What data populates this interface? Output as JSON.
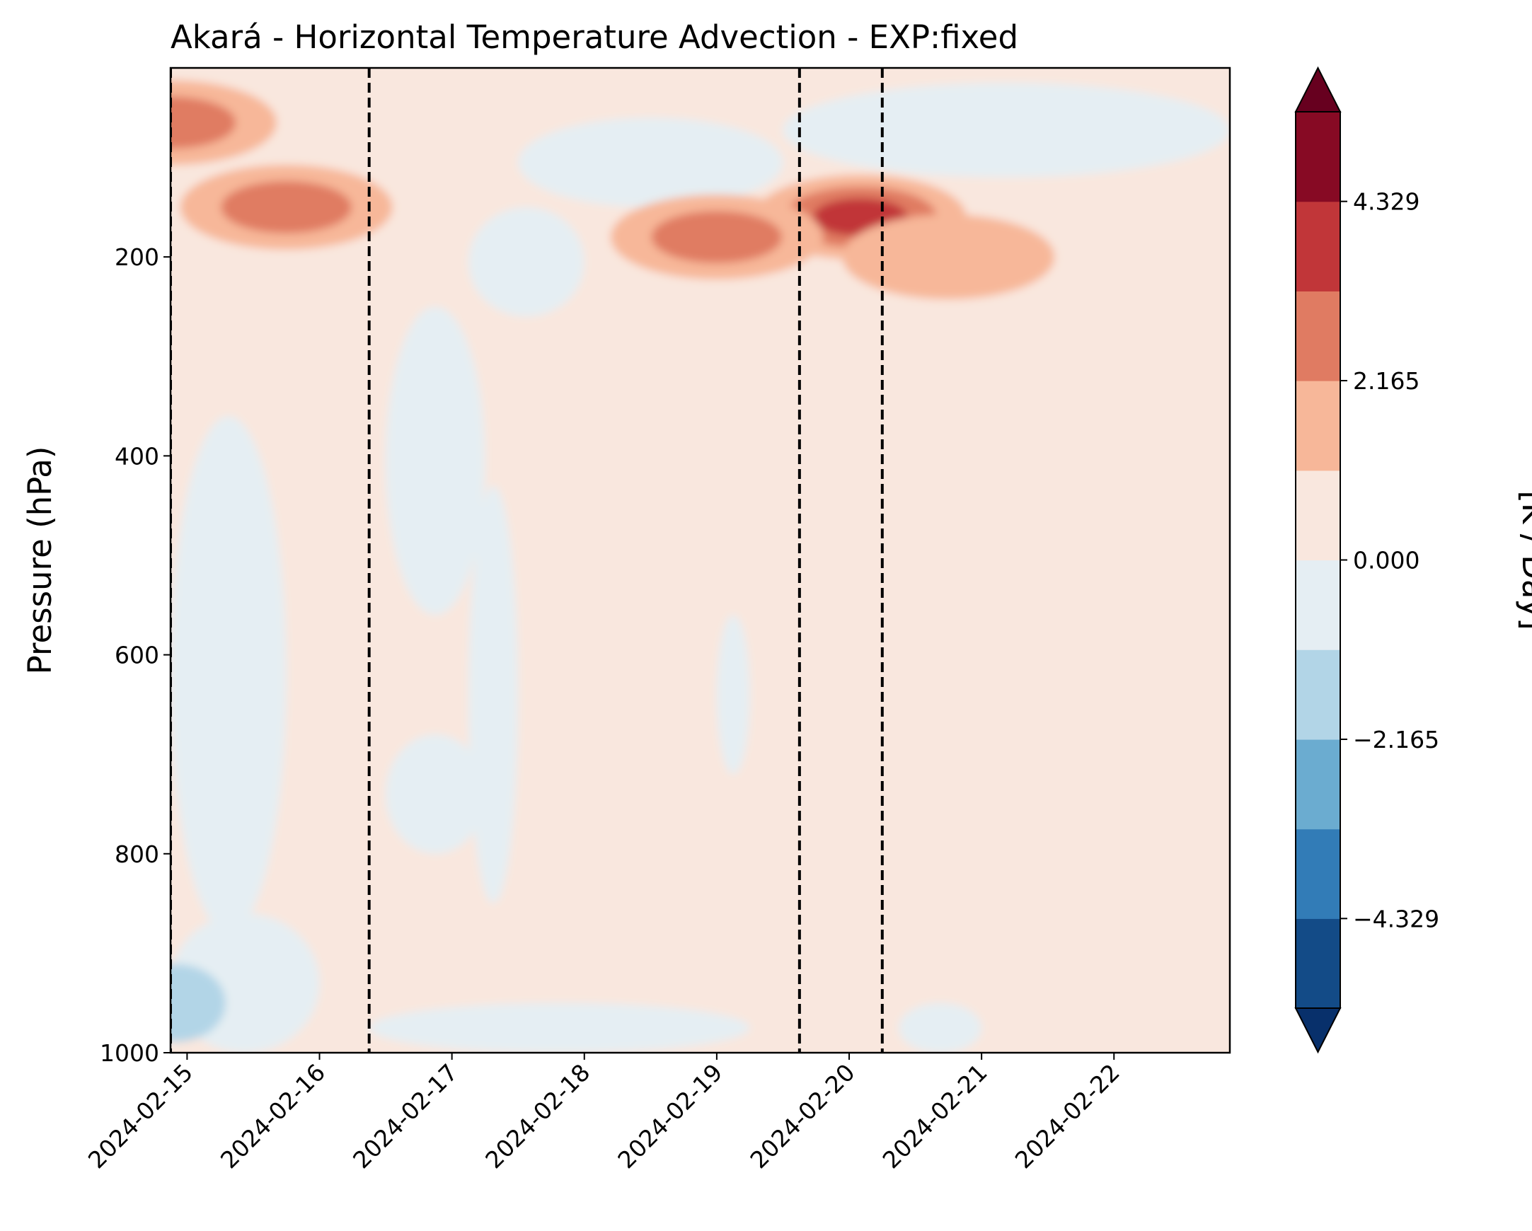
{
  "chart_data": {
    "type": "heatmap",
    "title": "Akará - Horizontal Temperature Advection - EXP:fixed",
    "xlabel": "",
    "ylabel": "Pressure (hPa)",
    "y_axis": {
      "direction": "inverted",
      "ticks": [
        200,
        400,
        600,
        800,
        1000
      ],
      "ylim": [
        1000,
        10
      ]
    },
    "x_axis": {
      "ticks": [
        "2024-02-15",
        "2024-02-16",
        "2024-02-17",
        "2024-02-18",
        "2024-02-19",
        "2024-02-20",
        "2024-02-21",
        "2024-02-22"
      ],
      "xlim": [
        "2024-02-14T21:00",
        "2024-02-22T21:00"
      ]
    },
    "vertical_lines": [
      "2024-02-14T21:00",
      "2024-02-16T09:00",
      "2024-02-19T15:00",
      "2024-02-20T06:00"
    ],
    "colorbar": {
      "label": "[K / Day]",
      "extend": "both",
      "levels": [
        -5.411,
        -4.329,
        -3.247,
        -2.165,
        -1.082,
        0.0,
        1.082,
        2.165,
        3.247,
        4.329,
        5.411
      ],
      "tick_labels": [
        "4.329",
        "2.165",
        "0.000",
        "−2.165",
        "−4.329"
      ],
      "tick_values": [
        4.329,
        2.165,
        0.0,
        -2.165,
        -4.329
      ],
      "colors": [
        "#134b87",
        "#327cb7",
        "#6bacd0",
        "#b2d5e7",
        "#e5eef3",
        "#f9e7de",
        "#f7b799",
        "#e07b62",
        "#c13639",
        "#870a24"
      ],
      "under_color": "#08306b",
      "over_color": "#67001f"
    },
    "features": [
      {
        "kind": "upper-level warm advection maximum",
        "date": "2024-02-20T02:00",
        "pressure": 160,
        "value": 4.5
      },
      {
        "kind": "warm advection",
        "date": "2024-02-15T18:00",
        "pressure": 150,
        "value": 3.5
      },
      {
        "kind": "warm advection",
        "date": "2024-02-14T21:00",
        "pressure": 65,
        "value": 3.0
      },
      {
        "kind": "warm advection",
        "date": "2024-02-19T00:00",
        "pressure": 180,
        "value": 2.7
      },
      {
        "kind": "warm advection",
        "date": "2024-02-20T18:00",
        "pressure": 200,
        "value": 2.5
      },
      {
        "kind": "cold advection",
        "date": "2024-02-15T03:00",
        "pressure": 300,
        "value": -1.5
      },
      {
        "kind": "low-level cold advection",
        "date": "2024-02-14T22:00",
        "pressure": 950,
        "value": -2.5
      },
      {
        "kind": "low-level warm advection",
        "date": "2024-02-16T09:00",
        "pressure": 870,
        "value": 1.5
      },
      {
        "kind": "low-level warm advection",
        "date": "2024-02-19T06:00",
        "pressure": 930,
        "value": 1.5
      },
      {
        "kind": "upper cold advection",
        "date": "2024-02-22T00:00",
        "pressure": 100,
        "value": -1.5
      }
    ]
  }
}
